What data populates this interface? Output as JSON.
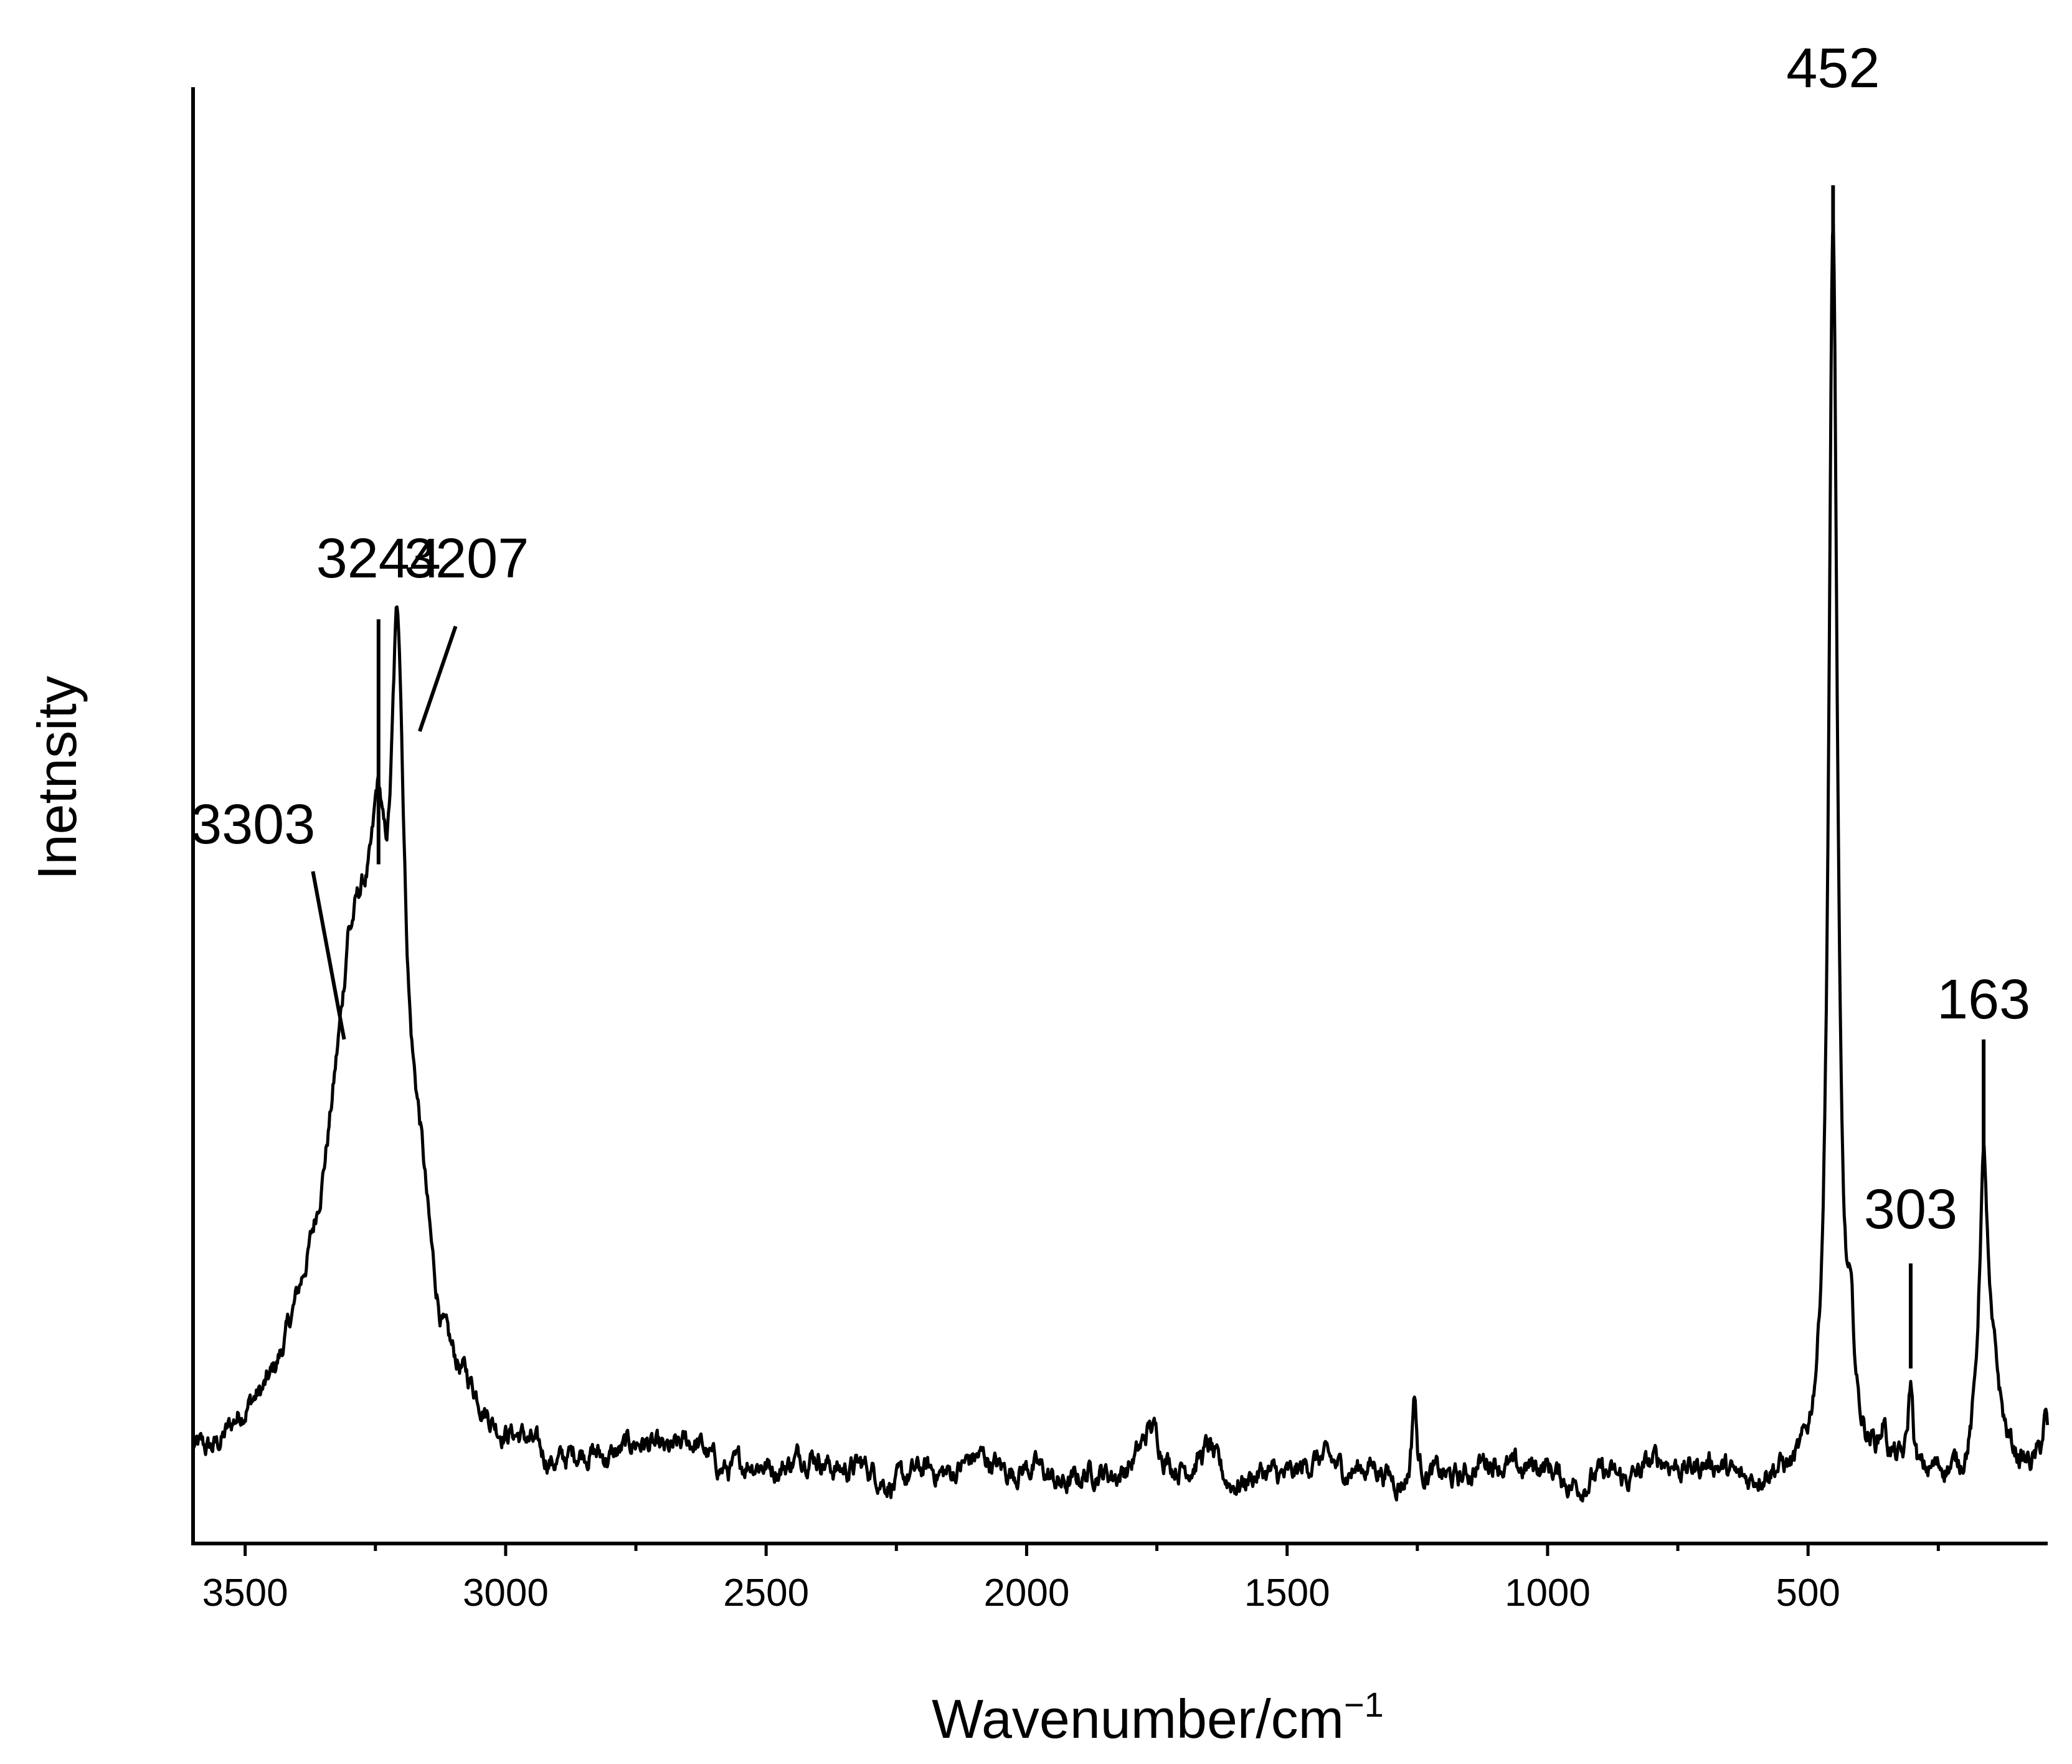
{
  "chart_data": {
    "type": "line",
    "title": "",
    "xlabel": "Wavenumber/cm",
    "xlabel_superscript": "−1",
    "ylabel": "Inetnsity",
    "x_reversed": true,
    "xlim": [
      3600,
      40
    ],
    "ylim": [
      0,
      1.04
    ],
    "xticks": [
      3500,
      3000,
      2500,
      2000,
      1500,
      1000,
      500
    ],
    "minor_tick_step": 250,
    "grid": false,
    "legend": "none",
    "line_color": "#000000",
    "baseline": 0.05,
    "noise_amplitude": 0.012,
    "peaks": [
      {
        "x": 3303,
        "height": 0.02,
        "width": 4
      },
      {
        "x": 3280,
        "height": 0.38,
        "width": 78
      },
      {
        "x": 3244,
        "height": 0.12,
        "width": 14
      },
      {
        "x": 3207,
        "height": 0.38,
        "width": 16
      },
      {
        "x": 3165,
        "height": 0.08,
        "width": 25
      },
      {
        "x": 1256,
        "height": 0.065,
        "width": 5
      },
      {
        "x": 1760,
        "height": 0.022,
        "width": 18
      },
      {
        "x": 1650,
        "height": 0.015,
        "width": 14
      },
      {
        "x": 2640,
        "height": 0.015,
        "width": 60
      },
      {
        "x": 452,
        "height": 0.88,
        "width": 10
      },
      {
        "x": 418,
        "height": 0.06,
        "width": 9
      },
      {
        "x": 355,
        "height": 0.02,
        "width": 5
      },
      {
        "x": 303,
        "height": 0.065,
        "width": 6
      },
      {
        "x": 163,
        "height": 0.215,
        "width": 11
      },
      {
        "x": 140,
        "height": 0.035,
        "width": 14
      },
      {
        "x": 45,
        "height": 0.03,
        "width": 6
      }
    ],
    "annotations": [
      {
        "label": "452",
        "x": 452,
        "line_top": 0.97,
        "line_bottom": 0.88,
        "text_y": 1.04
      },
      {
        "label": "3244",
        "x": 3244,
        "line_top": 0.66,
        "line_bottom": 0.485,
        "text_y": 0.69
      },
      {
        "label": "3207",
        "x": 3207,
        "line_from": [
          3165,
          0.58
        ],
        "line_to": [
          3096,
          0.655
        ],
        "text_x": 3075,
        "text_y": 0.69
      },
      {
        "label": "3303",
        "x": 3303,
        "line_from": [
          3310,
          0.36
        ],
        "line_to": [
          3370,
          0.48
        ],
        "text_x": 3485,
        "text_y": 0.5
      },
      {
        "label": "163",
        "x": 163,
        "line_top": 0.36,
        "line_bottom": 0.265,
        "text_y": 0.375
      },
      {
        "label": "303",
        "x": 303,
        "line_top": 0.2,
        "line_bottom": 0.125,
        "text_y": 0.225
      }
    ]
  }
}
